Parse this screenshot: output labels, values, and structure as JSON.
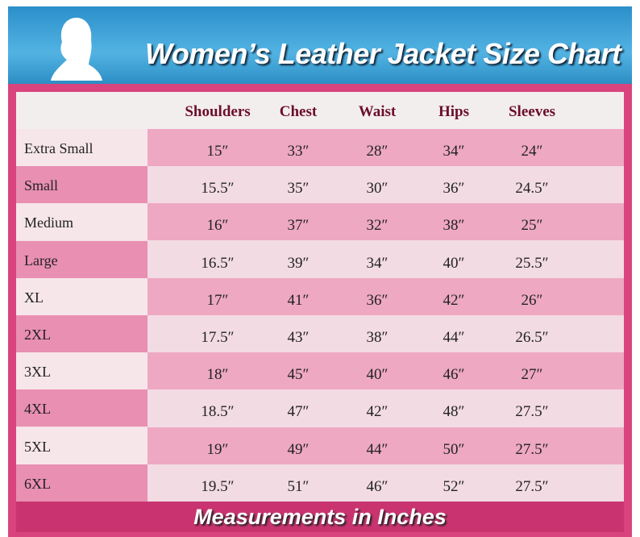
{
  "header": {
    "title": "Women’s Leather Jacket Size Chart"
  },
  "table": {
    "columns": [
      "Shoulders",
      "Chest",
      "Waist",
      "Hips",
      "Sleeves"
    ],
    "rows": [
      [
        "Extra Small",
        "15″",
        "33″",
        "28″",
        "34″",
        "24″"
      ],
      [
        "Small",
        "15.5″",
        "35″",
        "30″",
        "36″",
        "24.5″"
      ],
      [
        "Medium",
        "16″",
        "37″",
        "32″",
        "38″",
        "25″"
      ],
      [
        "Large",
        "16.5″",
        "39″",
        "34″",
        "40″",
        "25.5″"
      ],
      [
        "XL",
        "17″",
        "41″",
        "36″",
        "42″",
        "26″"
      ],
      [
        "2XL",
        "17.5″",
        "43″",
        "38″",
        "44″",
        "26.5″"
      ],
      [
        "3XL",
        "18″",
        "45″",
        "40″",
        "46″",
        "27″"
      ],
      [
        "4XL",
        "18.5″",
        "47″",
        "42″",
        "48″",
        "27.5″"
      ],
      [
        "5XL",
        "19″",
        "49″",
        "44″",
        "50″",
        "27.5″"
      ],
      [
        "6XL",
        "19.5″",
        "51″",
        "46″",
        "52″",
        "27.5″"
      ]
    ]
  },
  "footer": {
    "note": "Measurements in Inches"
  }
}
